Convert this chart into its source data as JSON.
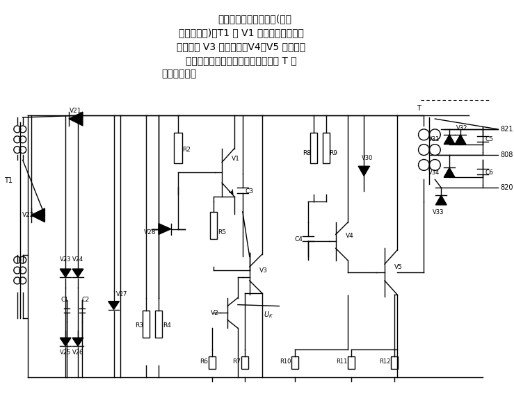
{
  "title_lines": [
    "所示为双闭环调速系统(晶闸",
    "管触发电路)。T1 和 V1 组成同步电路，单",
    "结晶体管 V3 形成脉冲，V4、V5 为脉冲整",
    "形及脉冲功率放大，再由脉冲变压器 T 输",
    "出到晶闸管。"
  ],
  "bg_color": "#ffffff",
  "line_color": "#000000",
  "text_color": "#000000",
  "font_size": 10
}
